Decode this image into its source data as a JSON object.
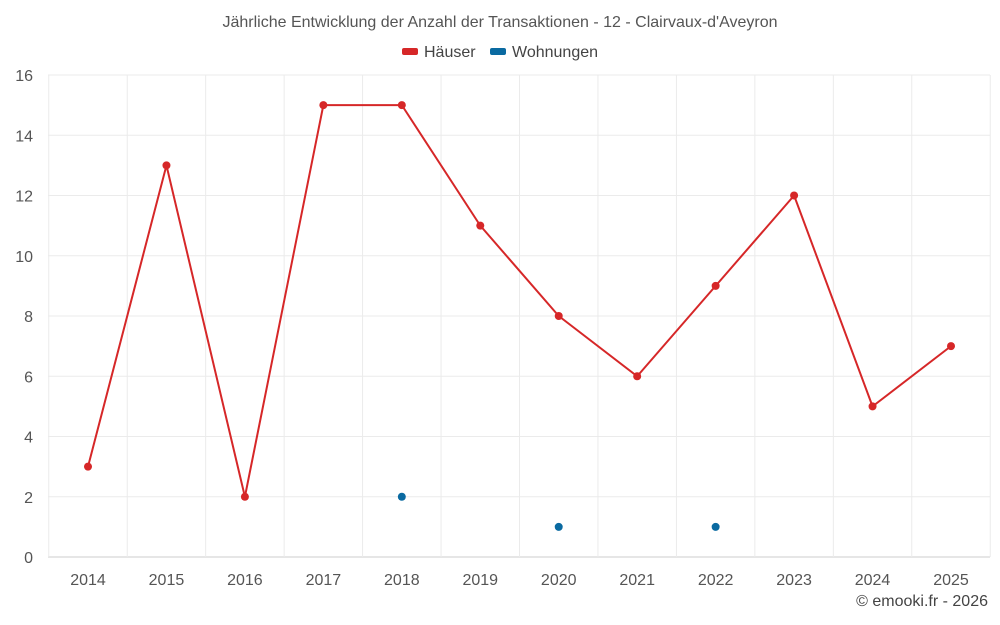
{
  "chart_data": {
    "type": "line",
    "title": "Jährliche Entwicklung der Anzahl der Transaktionen - 12 - Clairvaux-d'Aveyron",
    "xlabel": "",
    "ylabel": "",
    "categories": [
      "2014",
      "2015",
      "2016",
      "2017",
      "2018",
      "2019",
      "2020",
      "2021",
      "2022",
      "2023",
      "2024",
      "2025"
    ],
    "series": [
      {
        "name": "Häuser",
        "color": "#d62728",
        "values": [
          3,
          13,
          2,
          15,
          15,
          11,
          8,
          6,
          9,
          12,
          5,
          7
        ]
      },
      {
        "name": "Wohnungen",
        "color": "#0a6aa1",
        "values": [
          null,
          null,
          null,
          null,
          2,
          null,
          1,
          null,
          1,
          null,
          null,
          null
        ]
      }
    ],
    "ylim": [
      0,
      16
    ],
    "yticks": [
      0,
      2,
      4,
      6,
      8,
      10,
      12,
      14,
      16
    ],
    "grid": true,
    "legend_position": "top-center"
  },
  "footer": {
    "copyright": "© emooki.fr - 2026"
  }
}
